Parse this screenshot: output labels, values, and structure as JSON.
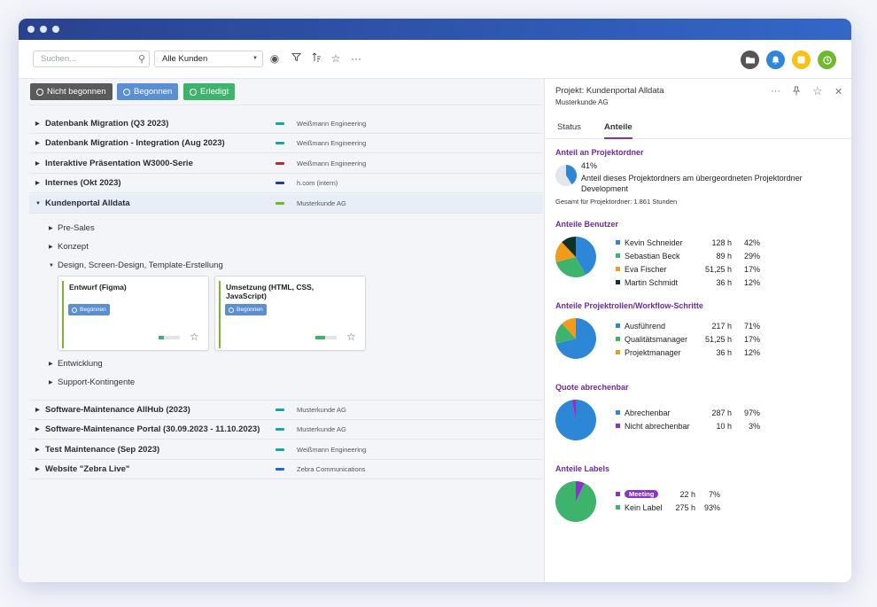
{
  "toolbar": {
    "search_placeholder": "Suchen...",
    "customer_filter": "Alle Kunden"
  },
  "filters": {
    "not_started": "Nicht begonnen",
    "started": "Begonnen",
    "done": "Erledigt"
  },
  "projects": [
    {
      "name": "Datenbank Migration (Q3 2023)",
      "customer": "Weißmann Engineering",
      "color": "#19a3a3"
    },
    {
      "name": "Datenbank Migration - Integration (Aug 2023)",
      "customer": "Weißmann Engineering",
      "color": "#19a3a3"
    },
    {
      "name": "Interaktive Präsentation W3000-Serie",
      "customer": "Weißmann Engineering",
      "color": "#c0262b"
    },
    {
      "name": "Internes (Okt 2023)",
      "customer": "h.com (intern)",
      "color": "#1c3ca8"
    },
    {
      "name": "Kundenportal Alldata",
      "customer": "Musterkunde AG",
      "color": "#6fba2c"
    },
    {
      "name": "Software-Maintenance AllHub (2023)",
      "customer": "Musterkunde AG",
      "color": "#19a3a3"
    },
    {
      "name": "Software-Maintenance Portal (30.09.2023 - 11.10.2023)",
      "customer": "Musterkunde AG",
      "color": "#19a3a3"
    },
    {
      "name": "Test Maintenance (Sep 2023)",
      "customer": "Weißmann Engineering",
      "color": "#19a3a3"
    },
    {
      "name": "Website \"Zebra Live\"",
      "customer": "Zebra Communications",
      "color": "#1f63e0"
    }
  ],
  "subfolders": {
    "pre_sales": "Pre-Sales",
    "konzept": "Konzept",
    "design": "Design, Screen-Design, Template-Erstellung",
    "entwicklung": "Entwicklung",
    "support": "Support-Kontingente"
  },
  "cards": [
    {
      "title": "Entwurf (Figma)",
      "status": "Begonnen",
      "progress": 0.25
    },
    {
      "title": "Umsetzung (HTML, CSS, JavaScript)",
      "status": "Begonnen",
      "progress": 0.45
    }
  ],
  "panel": {
    "title": "Projekt: Kundenportal Alldata",
    "customer": "Musterkunde AG",
    "tab_status": "Status",
    "tab_shares": "Anteile",
    "folder_share": {
      "heading": "Anteil an Projektordner",
      "percent": "41%",
      "description": "Anteil dieses Projektordners am übergeordneten Projektordner Development",
      "total": "Gesamt für Projektordner: 1.861 Stunden",
      "value": 0.41
    },
    "users": {
      "heading": "Anteile Benutzer",
      "rows": [
        {
          "name": "Kevin Schneider",
          "hours": "128 h",
          "pct": "42%",
          "value": 42,
          "color": "#2e86d6"
        },
        {
          "name": "Sebastian Beck",
          "hours": "89 h",
          "pct": "29%",
          "value": 29,
          "color": "#3db36b"
        },
        {
          "name": "Eva Fischer",
          "hours": "51,25 h",
          "pct": "17%",
          "value": 17,
          "color": "#f29a1e"
        },
        {
          "name": "Martin Schmidt",
          "hours": "36 h",
          "pct": "12%",
          "value": 12,
          "color": "#10302a"
        }
      ]
    },
    "roles": {
      "heading": "Anteile Projektrollen/Workflow-Schritte",
      "rows": [
        {
          "name": "Ausführend",
          "hours": "217 h",
          "pct": "71%",
          "value": 71,
          "color": "#2e86d6"
        },
        {
          "name": "Qualitätsmanager",
          "hours": "51,25 h",
          "pct": "17%",
          "value": 17,
          "color": "#3db36b"
        },
        {
          "name": "Projektmanager",
          "hours": "36 h",
          "pct": "12%",
          "value": 12,
          "color": "#f29a1e"
        }
      ]
    },
    "billable": {
      "heading": "Quote abrechenbar",
      "rows": [
        {
          "name": "Abrechenbar",
          "hours": "287 h",
          "pct": "97%",
          "value": 97,
          "color": "#2e86d6"
        },
        {
          "name": "Nicht abrechenbar",
          "hours": "10 h",
          "pct": "3%",
          "value": 3,
          "color": "#8a33c7"
        }
      ]
    },
    "labels": {
      "heading": "Anteile Labels",
      "rows": [
        {
          "name": "Meeting",
          "hours": "22 h",
          "pct": "7%",
          "value": 7,
          "color": "#8a33c7"
        },
        {
          "name": "Kein Label",
          "hours": "275 h",
          "pct": "93%",
          "value": 93,
          "color": "#3db36b"
        }
      ]
    }
  },
  "icons": {
    "folder": "folder-icon",
    "bell": "bell-icon",
    "note": "note-icon",
    "clock": "clock-icon"
  }
}
